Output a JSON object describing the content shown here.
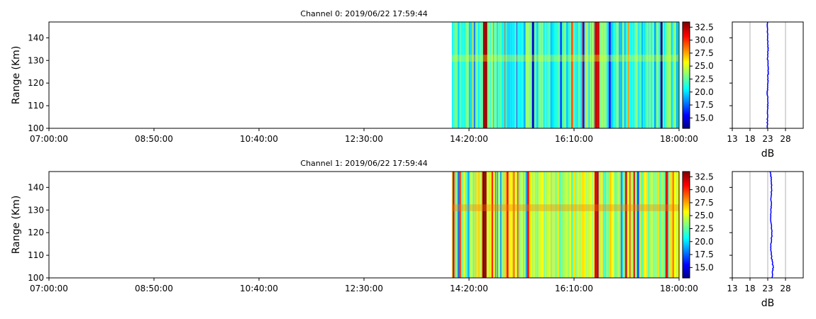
{
  "chart_data": [
    {
      "type": "heatmap",
      "title": "Channel 0: 2019/06/22 17:59:44",
      "ylabel": "Range (Km)",
      "xlabel": "",
      "x_tick_labels": [
        "07:00:00",
        "08:50:00",
        "10:40:00",
        "12:30:00",
        "14:20:00",
        "16:10:00",
        "18:00:00"
      ],
      "x_range": [
        "07:00:00",
        "18:00:00"
      ],
      "data_start": "14:02:00",
      "y_ticks": [
        100,
        110,
        120,
        130,
        140
      ],
      "ylim": [
        100,
        147
      ],
      "colormap": "jet",
      "colorbar_ticks": [
        15.0,
        17.5,
        20.0,
        22.5,
        25.0,
        27.5,
        30.0,
        32.5
      ],
      "colorbar_tick_labels": [
        "15.0",
        "17.5",
        "20.0",
        "22.5",
        "25.0",
        "27.5",
        "30.0",
        "32.5"
      ],
      "clim": [
        13,
        33.5
      ],
      "typical_level_db": 21.5,
      "strong_streaks": [
        {
          "time": "14:36:00",
          "db": 33
        },
        {
          "time": "16:33:00",
          "db": 32
        }
      ],
      "profile": {
        "xlabel": "dB",
        "x_ticks": [
          13,
          18,
          23,
          28
        ],
        "x_tick_labels": [
          "13",
          "18",
          "23",
          "28"
        ],
        "xlim": [
          13,
          33
        ],
        "grid": true,
        "color": "#0000ff",
        "ranges": [
          100,
          105,
          110,
          115,
          120,
          125,
          130,
          135,
          140,
          145,
          147
        ],
        "values": [
          22.9,
          22.9,
          23.0,
          22.9,
          23.0,
          23.1,
          23.0,
          23.1,
          23.0,
          22.9,
          22.9
        ]
      }
    },
    {
      "type": "heatmap",
      "title": "Channel 1: 2019/06/22 17:59:44",
      "ylabel": "Range (Km)",
      "xlabel": "",
      "x_tick_labels": [
        "07:00:00",
        "08:50:00",
        "10:40:00",
        "12:30:00",
        "14:20:00",
        "16:10:00",
        "18:00:00"
      ],
      "x_range": [
        "07:00:00",
        "18:00:00"
      ],
      "data_start": "14:02:00",
      "y_ticks": [
        100,
        110,
        120,
        130,
        140
      ],
      "ylim": [
        100,
        147
      ],
      "colormap": "jet",
      "colorbar_ticks": [
        15.0,
        17.5,
        20.0,
        22.5,
        25.0,
        27.5,
        30.0,
        32.5
      ],
      "colorbar_tick_labels": [
        "15.0",
        "17.5",
        "20.0",
        "22.5",
        "25.0",
        "27.5",
        "30.0",
        "32.5"
      ],
      "clim": [
        13,
        33.5
      ],
      "typical_level_db": 24.5,
      "strong_streaks": [
        {
          "time": "14:36:00",
          "db": 34
        },
        {
          "time": "16:33:00",
          "db": 32
        }
      ],
      "profile": {
        "xlabel": "dB",
        "x_ticks": [
          13,
          18,
          23,
          28
        ],
        "x_tick_labels": [
          "13",
          "18",
          "23",
          "28"
        ],
        "xlim": [
          13,
          33
        ],
        "grid": true,
        "color": "#0000ff",
        "ranges": [
          100,
          105,
          110,
          115,
          120,
          125,
          130,
          135,
          140,
          145,
          147
        ],
        "values": [
          24.2,
          24.5,
          24.0,
          23.9,
          24.2,
          23.8,
          23.9,
          24.0,
          24.1,
          23.9,
          23.7
        ]
      }
    }
  ]
}
